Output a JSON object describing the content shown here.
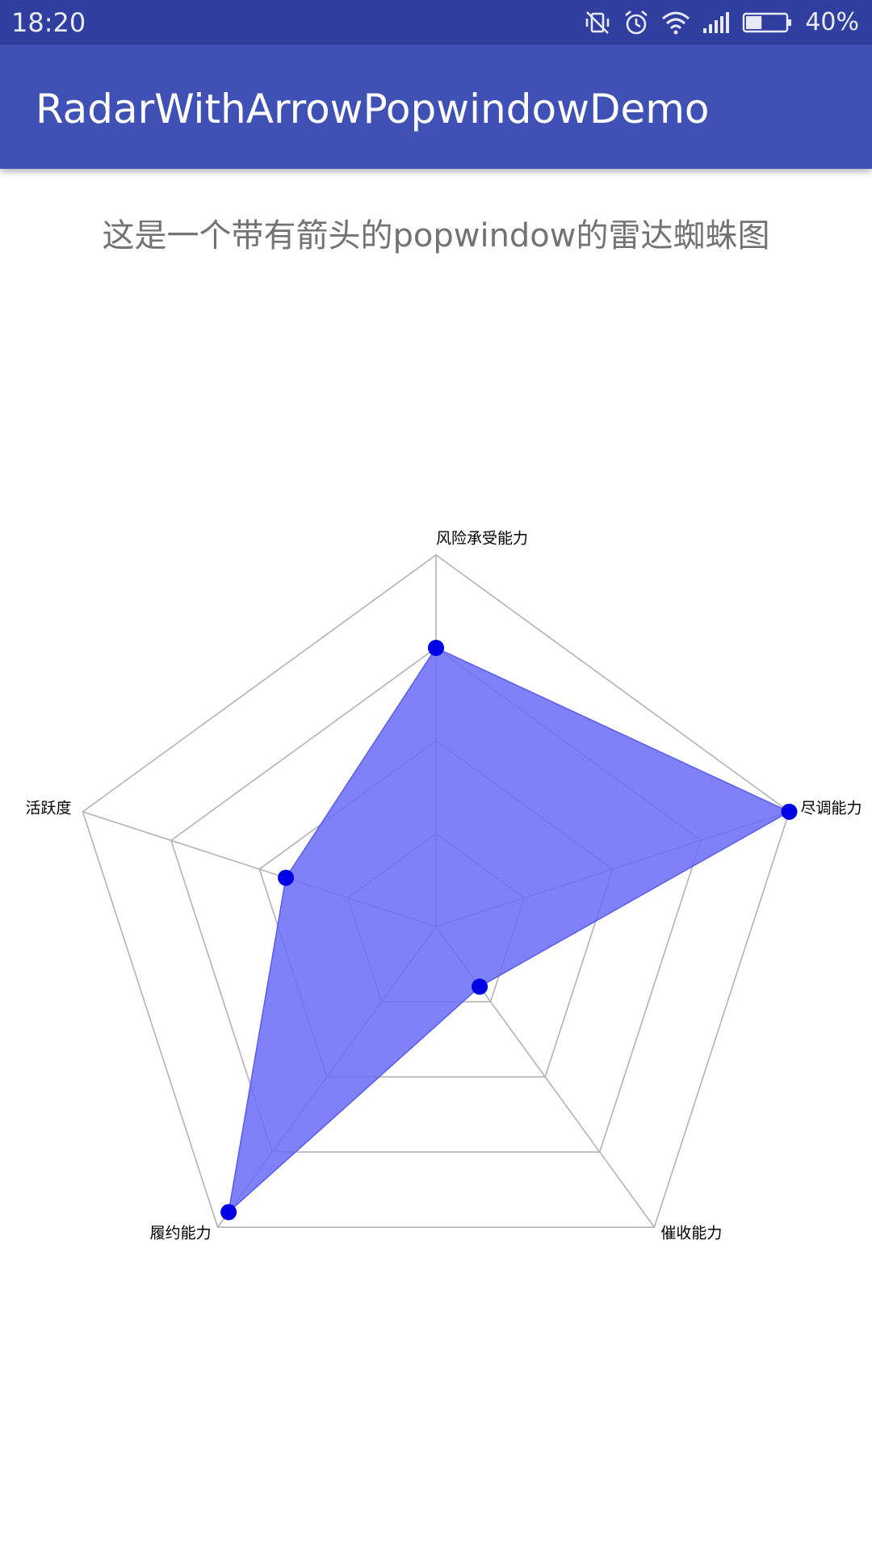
{
  "status_bar": {
    "time": "18:20",
    "battery_percent": "40%",
    "battery_level": 0.4,
    "icons": [
      "vibrate-off-icon",
      "alarm-icon",
      "wifi-icon",
      "signal-icon",
      "battery-icon"
    ]
  },
  "app_bar": {
    "title": "RadarWithArrowPopwindowDemo",
    "color": "#3f51b5",
    "status_color": "#303f9f"
  },
  "main": {
    "subtitle": "这是一个带有箭头的popwindow的雷达蜘蛛图"
  },
  "chart_data": {
    "type": "radar",
    "axes": [
      "风险承受能力",
      "尽调能力",
      "催收能力",
      "履约能力",
      "活跃度"
    ],
    "levels": 4,
    "max": 4,
    "values": [
      3,
      4,
      0.8,
      3.8,
      1.7
    ],
    "fill_color": "#6a6cf7",
    "point_color": "#0000e6",
    "grid_color": "#b3b3b3"
  }
}
